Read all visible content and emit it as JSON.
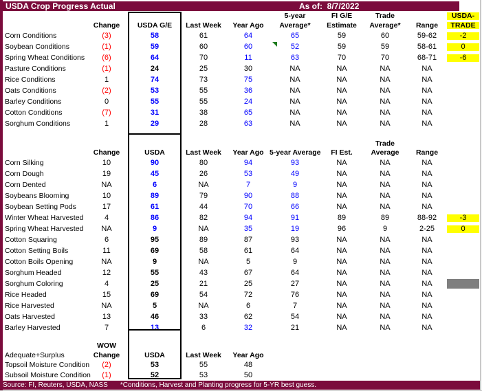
{
  "title": "USDA Crop Progress Actual",
  "as_of_label": "As of:",
  "as_of_date": "8/7/2022",
  "colors": {
    "maroon": "#7B0B3C",
    "yellow": "#FFFF00",
    "red": "#FF0000",
    "blue": "#0000FF",
    "gray_cell": "#7F7F7F",
    "green_flag": "#1E7B1E"
  },
  "annotations": {
    "comment_flag": {
      "row": "Soybean Conditions",
      "near_column": "5-year Average*",
      "type": "green-triangle-flag"
    }
  },
  "sections": [
    {
      "name": "conditions",
      "header_label": "",
      "header_top": [
        [
          ""
        ],
        [
          ""
        ],
        [
          ""
        ],
        [
          ""
        ],
        [
          "5-year"
        ],
        [
          "FI G/E"
        ],
        [
          "Trade"
        ],
        [
          ""
        ],
        [
          "USDA-",
          "k",
          "y"
        ]
      ],
      "header_bottom": [
        [
          "Change"
        ],
        [
          "USDA G/E"
        ],
        [
          "Last Week"
        ],
        [
          "Year Ago"
        ],
        [
          "Average*"
        ],
        [
          "Estimate"
        ],
        [
          "Average*"
        ],
        [
          "Range"
        ],
        [
          "TRADE",
          "k",
          "y"
        ]
      ],
      "rows": [
        {
          "label": "Corn Conditions",
          "cells": [
            [
              "(3)",
              "r"
            ],
            [
              "58",
              "b"
            ],
            [
              "61"
            ],
            [
              "64",
              "b"
            ],
            [
              "65",
              "b"
            ],
            [
              "59"
            ],
            [
              "60"
            ],
            [
              "59-62"
            ],
            [
              "-2",
              "k",
              "y"
            ]
          ]
        },
        {
          "label": "Soybean Conditions",
          "cells": [
            [
              "(1)",
              "r"
            ],
            [
              "59",
              "b"
            ],
            [
              "60"
            ],
            [
              "60",
              "b"
            ],
            [
              "52",
              "b"
            ],
            [
              "59"
            ],
            [
              "59"
            ],
            [
              "58-61"
            ],
            [
              "0",
              "k",
              "y"
            ]
          ]
        },
        {
          "label": "Spring Wheat Conditions",
          "cells": [
            [
              "(6)",
              "r"
            ],
            [
              "64",
              "b"
            ],
            [
              "70"
            ],
            [
              "11",
              "b"
            ],
            [
              "63",
              "b"
            ],
            [
              "70"
            ],
            [
              "70"
            ],
            [
              "68-71"
            ],
            [
              "-6",
              "k",
              "y"
            ]
          ]
        },
        {
          "label": "Pasture Conditions",
          "cells": [
            [
              "(1)",
              "r"
            ],
            [
              "24"
            ],
            [
              "25"
            ],
            [
              "30"
            ],
            [
              "NA"
            ],
            [
              "NA"
            ],
            [
              "NA"
            ],
            [
              "NA"
            ],
            [
              ""
            ]
          ]
        },
        {
          "label": "Rice Conditions",
          "cells": [
            [
              "1"
            ],
            [
              "74",
              "b"
            ],
            [
              "73"
            ],
            [
              "75",
              "b"
            ],
            [
              "NA"
            ],
            [
              "NA"
            ],
            [
              "NA"
            ],
            [
              "NA"
            ],
            [
              ""
            ]
          ]
        },
        {
          "label": "Oats Conditions",
          "cells": [
            [
              "(2)",
              "r"
            ],
            [
              "53",
              "b"
            ],
            [
              "55"
            ],
            [
              "36",
              "b"
            ],
            [
              "NA"
            ],
            [
              "NA"
            ],
            [
              "NA"
            ],
            [
              "NA"
            ],
            [
              ""
            ]
          ]
        },
        {
          "label": "Barley Conditions",
          "cells": [
            [
              "0"
            ],
            [
              "55",
              "b"
            ],
            [
              "55"
            ],
            [
              "24",
              "b"
            ],
            [
              "NA"
            ],
            [
              "NA"
            ],
            [
              "NA"
            ],
            [
              "NA"
            ],
            [
              ""
            ]
          ]
        },
        {
          "label": "Cotton Conditions",
          "cells": [
            [
              "(7)",
              "r"
            ],
            [
              "31",
              "b"
            ],
            [
              "38"
            ],
            [
              "65",
              "b"
            ],
            [
              "NA"
            ],
            [
              "NA"
            ],
            [
              "NA"
            ],
            [
              "NA"
            ],
            [
              ""
            ]
          ]
        },
        {
          "label": "Sorghum Conditions",
          "cells": [
            [
              "1"
            ],
            [
              "29",
              "b"
            ],
            [
              "28"
            ],
            [
              "63",
              "b"
            ],
            [
              "NA"
            ],
            [
              "NA"
            ],
            [
              "NA"
            ],
            [
              "NA"
            ],
            [
              ""
            ]
          ]
        }
      ]
    },
    {
      "name": "progress",
      "header_label": "",
      "header_top": [
        [
          ""
        ],
        [
          ""
        ],
        [
          ""
        ],
        [
          ""
        ],
        [
          ""
        ],
        [
          ""
        ],
        [
          "Trade"
        ],
        [
          ""
        ],
        [
          ""
        ]
      ],
      "header_bottom": [
        [
          "Change"
        ],
        [
          "USDA"
        ],
        [
          "Last Week"
        ],
        [
          "Year Ago"
        ],
        [
          "5-year Average"
        ],
        [
          "FI Est."
        ],
        [
          "Average"
        ],
        [
          "Range"
        ],
        [
          ""
        ]
      ],
      "rows": [
        {
          "label": "Corn Silking",
          "cells": [
            [
              "10"
            ],
            [
              "90",
              "b"
            ],
            [
              "80"
            ],
            [
              "94",
              "b"
            ],
            [
              "93",
              "b"
            ],
            [
              "NA"
            ],
            [
              "NA"
            ],
            [
              "NA"
            ],
            [
              ""
            ]
          ]
        },
        {
          "label": "Corn Dough",
          "cells": [
            [
              "19"
            ],
            [
              "45",
              "b"
            ],
            [
              "26"
            ],
            [
              "53",
              "b"
            ],
            [
              "49",
              "b"
            ],
            [
              "NA"
            ],
            [
              "NA"
            ],
            [
              "NA"
            ],
            [
              ""
            ]
          ]
        },
        {
          "label": "Corn Dented",
          "cells": [
            [
              "NA"
            ],
            [
              "6",
              "b"
            ],
            [
              "NA"
            ],
            [
              "7",
              "b"
            ],
            [
              "9",
              "b"
            ],
            [
              "NA"
            ],
            [
              "NA"
            ],
            [
              "NA"
            ],
            [
              ""
            ]
          ]
        },
        {
          "label": "Soybeans Blooming",
          "cells": [
            [
              "10"
            ],
            [
              "89",
              "b"
            ],
            [
              "79"
            ],
            [
              "90",
              "b"
            ],
            [
              "88",
              "b"
            ],
            [
              "NA"
            ],
            [
              "NA"
            ],
            [
              "NA"
            ],
            [
              ""
            ]
          ]
        },
        {
          "label": "Soybean Setting Pods",
          "cells": [
            [
              "17"
            ],
            [
              "61",
              "b"
            ],
            [
              "44"
            ],
            [
              "70",
              "b"
            ],
            [
              "66",
              "b"
            ],
            [
              "NA"
            ],
            [
              "NA"
            ],
            [
              "NA"
            ],
            [
              ""
            ]
          ]
        },
        {
          "label": "Winter Wheat Harvested",
          "cells": [
            [
              "4"
            ],
            [
              "86",
              "b"
            ],
            [
              "82"
            ],
            [
              "94",
              "b"
            ],
            [
              "91",
              "b"
            ],
            [
              "89"
            ],
            [
              "89"
            ],
            [
              "88-92"
            ],
            [
              "-3",
              "k",
              "y"
            ]
          ]
        },
        {
          "label": "Spring Wheat Harvested",
          "cells": [
            [
              "NA"
            ],
            [
              "9",
              "b"
            ],
            [
              "NA"
            ],
            [
              "35",
              "b"
            ],
            [
              "19",
              "b"
            ],
            [
              "96"
            ],
            [
              "9"
            ],
            [
              "2-25"
            ],
            [
              "0",
              "k",
              "y"
            ]
          ]
        },
        {
          "label": "Cotton Squaring",
          "cells": [
            [
              "6"
            ],
            [
              "95"
            ],
            [
              "89"
            ],
            [
              "87"
            ],
            [
              "93"
            ],
            [
              "NA"
            ],
            [
              "NA"
            ],
            [
              "NA"
            ],
            [
              ""
            ]
          ]
        },
        {
          "label": "Cotton Setting Boils",
          "cells": [
            [
              "11"
            ],
            [
              "69"
            ],
            [
              "58"
            ],
            [
              "61"
            ],
            [
              "64"
            ],
            [
              "NA"
            ],
            [
              "NA"
            ],
            [
              "NA"
            ],
            [
              ""
            ]
          ]
        },
        {
          "label": "Cotton Boils Opening",
          "cells": [
            [
              "NA"
            ],
            [
              "9"
            ],
            [
              "NA"
            ],
            [
              "5"
            ],
            [
              "9"
            ],
            [
              "NA"
            ],
            [
              "NA"
            ],
            [
              "NA"
            ],
            [
              ""
            ]
          ]
        },
        {
          "label": "Sorghum Headed",
          "cells": [
            [
              "12"
            ],
            [
              "55"
            ],
            [
              "43"
            ],
            [
              "67"
            ],
            [
              "64"
            ],
            [
              "NA"
            ],
            [
              "NA"
            ],
            [
              "NA"
            ],
            [
              ""
            ]
          ]
        },
        {
          "label": "Sorghum Coloring",
          "cells": [
            [
              "4"
            ],
            [
              "25"
            ],
            [
              "21"
            ],
            [
              "25"
            ],
            [
              "27"
            ],
            [
              "NA"
            ],
            [
              "NA"
            ],
            [
              "NA"
            ],
            [
              "",
              "k",
              "g"
            ]
          ]
        },
        {
          "label": "Rice Headed",
          "cells": [
            [
              "15"
            ],
            [
              "69"
            ],
            [
              "54"
            ],
            [
              "72"
            ],
            [
              "76"
            ],
            [
              "NA"
            ],
            [
              "NA"
            ],
            [
              "NA"
            ],
            [
              ""
            ]
          ]
        },
        {
          "label": "Rice Harvested",
          "cells": [
            [
              "NA"
            ],
            [
              "5"
            ],
            [
              "NA"
            ],
            [
              "6"
            ],
            [
              "7"
            ],
            [
              "NA"
            ],
            [
              "NA"
            ],
            [
              "NA"
            ],
            [
              ""
            ]
          ]
        },
        {
          "label": "Oats Harvested",
          "cells": [
            [
              "13"
            ],
            [
              "46"
            ],
            [
              "33"
            ],
            [
              "62"
            ],
            [
              "54"
            ],
            [
              "NA"
            ],
            [
              "NA"
            ],
            [
              "NA"
            ],
            [
              ""
            ]
          ]
        },
        {
          "label": "Barley Harvested",
          "cells": [
            [
              "7"
            ],
            [
              "13",
              "b"
            ],
            [
              "6"
            ],
            [
              "32",
              "b"
            ],
            [
              "21"
            ],
            [
              "NA"
            ],
            [
              "NA"
            ],
            [
              "NA"
            ],
            [
              ""
            ]
          ]
        }
      ]
    },
    {
      "name": "soil-moisture",
      "header_label": "Adequate+Surplus",
      "header_top": [
        [
          "WOW"
        ],
        [
          ""
        ],
        [
          ""
        ],
        [
          ""
        ],
        [
          ""
        ],
        [
          ""
        ],
        [
          ""
        ],
        [
          ""
        ],
        [
          ""
        ]
      ],
      "header_bottom": [
        [
          "Change"
        ],
        [
          "USDA"
        ],
        [
          "Last Week"
        ],
        [
          "Year Ago"
        ],
        [
          ""
        ],
        [
          ""
        ],
        [
          ""
        ],
        [
          ""
        ],
        [
          ""
        ]
      ],
      "rows": [
        {
          "label": "Topsoil Moisture Condition",
          "cells": [
            [
              "(2)",
              "r"
            ],
            [
              "53"
            ],
            [
              "55"
            ],
            [
              "48"
            ],
            [
              ""
            ],
            [
              ""
            ],
            [
              ""
            ],
            [
              ""
            ],
            [
              ""
            ]
          ]
        },
        {
          "label": "Subsoil Moisture Condition",
          "cells": [
            [
              "(1)",
              "r"
            ],
            [
              "52"
            ],
            [
              "53"
            ],
            [
              "50"
            ],
            [
              ""
            ],
            [
              ""
            ],
            [
              ""
            ],
            [
              ""
            ],
            [
              ""
            ]
          ]
        }
      ]
    }
  ],
  "footer": {
    "source": "Source: FI, Reuters, USDA, NASS",
    "note": "*Conditions, Harvest and Planting progress for 5-YR best guess."
  }
}
